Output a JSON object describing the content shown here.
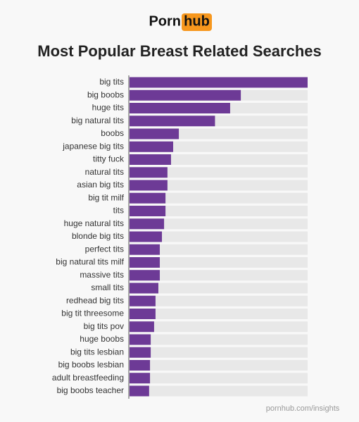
{
  "brand": {
    "left": "Porn",
    "right": "hub"
  },
  "chart_data": {
    "type": "barh",
    "title": "Most Popular Breast Related Searches",
    "categories": [
      "big tits",
      "big boobs",
      "huge tits",
      "big natural tits",
      "boobs",
      "japanese big tits",
      "titty fuck",
      "natural tits",
      "asian big tits",
      "big tit milf",
      "tits",
      "huge natural tits",
      "blonde big tits",
      "perfect tits",
      "big natural tits milf",
      "massive tits",
      "small tits",
      "redhead big tits",
      "big tit threesome",
      "big tits pov",
      "huge boobs",
      "big tits lesbian",
      "big boobs lesbian",
      "adult breastfeeding",
      "big boobs teacher"
    ],
    "values": [
      100,
      62.5,
      56.5,
      48,
      27.7,
      24.5,
      23.3,
      21.3,
      21.3,
      20.2,
      20.2,
      19.4,
      18.2,
      17,
      17,
      17,
      16.2,
      14.6,
      14.6,
      13.8,
      11.9,
      11.9,
      11.5,
      11.5,
      11
    ],
    "color": "#6d3a96",
    "xlim": [
      0,
      100
    ],
    "source": "pornhub.com/insights"
  }
}
